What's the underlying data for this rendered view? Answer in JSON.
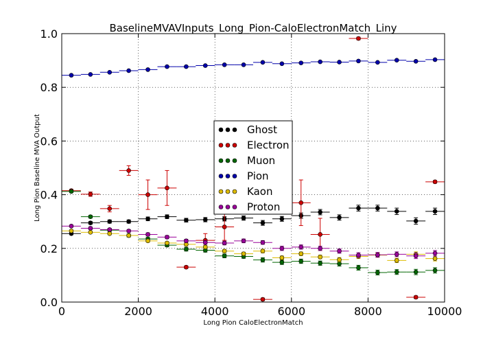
{
  "chart_data": {
    "type": "scatter",
    "title": "BaselineMVAVInputs_Long_Pion-CaloElectronMatch_Liny",
    "xlabel": "Long Pion CaloElectronMatch",
    "ylabel": "Long Pion Baseline MVA Output",
    "xlim": [
      0,
      10000
    ],
    "ylim": [
      0,
      1.0
    ],
    "xticks": [
      0,
      2000,
      4000,
      6000,
      8000,
      10000
    ],
    "xtick_labels": [
      "0",
      "2000",
      "4000",
      "6000",
      "8000",
      "10000"
    ],
    "yticks": [
      0.0,
      0.2,
      0.4,
      0.6,
      0.8,
      1.0
    ],
    "ytick_labels": [
      "0.0",
      "0.2",
      "0.4",
      "0.6",
      "0.8",
      "1.0"
    ],
    "grid": true,
    "legend_position": "center",
    "bin_width": 500,
    "x": [
      250,
      750,
      1250,
      1750,
      2250,
      2750,
      3250,
      3750,
      4250,
      4750,
      5250,
      5750,
      6250,
      6750,
      7250,
      7750,
      8250,
      8750,
      9250,
      9750
    ],
    "series": [
      {
        "name": "Ghost",
        "color": "#000000",
        "values": [
          0.255,
          0.295,
          0.3,
          0.3,
          0.31,
          0.318,
          0.305,
          0.307,
          0.31,
          0.313,
          0.295,
          0.31,
          0.322,
          0.335,
          0.315,
          0.35,
          0.35,
          0.338,
          0.302,
          0.338
        ],
        "errors": [
          0.004,
          0.005,
          0.006,
          0.006,
          0.007,
          0.007,
          0.007,
          0.008,
          0.008,
          0.008,
          0.009,
          0.009,
          0.01,
          0.01,
          0.01,
          0.011,
          0.011,
          0.012,
          0.012,
          0.012
        ]
      },
      {
        "name": "Electron",
        "color": "#cc0000",
        "values": [
          0.415,
          0.402,
          0.348,
          0.49,
          0.4,
          0.425,
          0.13,
          0.23,
          0.28,
          null,
          0.01,
          null,
          0.37,
          0.252,
          null,
          0.982,
          null,
          null,
          0.018,
          0.448
        ],
        "errors": [
          0.005,
          0.008,
          0.012,
          0.018,
          0.055,
          0.065,
          0.005,
          0.025,
          0.05,
          0,
          0.005,
          0,
          0.085,
          0.06,
          0,
          0.005,
          0,
          0,
          0.005,
          0.005
        ]
      },
      {
        "name": "Muon",
        "color": "#006600",
        "values": [
          0.412,
          0.318,
          0.268,
          0.248,
          0.235,
          0.212,
          0.197,
          0.193,
          0.172,
          0.17,
          0.157,
          0.148,
          0.152,
          0.145,
          0.143,
          0.128,
          0.11,
          0.112,
          0.112,
          0.118
        ],
        "errors": [
          0.004,
          0.005,
          0.005,
          0.006,
          0.006,
          0.006,
          0.007,
          0.007,
          0.007,
          0.007,
          0.008,
          0.008,
          0.008,
          0.008,
          0.009,
          0.009,
          0.009,
          0.009,
          0.01,
          0.01
        ]
      },
      {
        "name": "Pion",
        "color": "#0000aa",
        "values": [
          0.845,
          0.848,
          0.856,
          0.862,
          0.866,
          0.877,
          0.877,
          0.881,
          0.884,
          0.884,
          0.893,
          0.888,
          0.891,
          0.895,
          0.894,
          0.898,
          0.893,
          0.901,
          0.897,
          0.903
        ],
        "errors": [
          0.001,
          0.001,
          0.001,
          0.001,
          0.001,
          0.001,
          0.001,
          0.001,
          0.001,
          0.001,
          0.001,
          0.001,
          0.001,
          0.001,
          0.001,
          0.001,
          0.001,
          0.001,
          0.001,
          0.001
        ]
      },
      {
        "name": "Kaon",
        "color": "#ddbb00",
        "values": [
          0.265,
          0.26,
          0.255,
          0.248,
          0.228,
          0.22,
          0.215,
          0.205,
          0.19,
          0.18,
          0.19,
          0.165,
          0.18,
          0.168,
          0.158,
          0.17,
          0.175,
          0.155,
          0.178,
          0.162
        ],
        "errors": [
          0.003,
          0.004,
          0.004,
          0.005,
          0.005,
          0.005,
          0.006,
          0.006,
          0.006,
          0.006,
          0.007,
          0.007,
          0.007,
          0.007,
          0.008,
          0.008,
          0.008,
          0.008,
          0.009,
          0.009
        ]
      },
      {
        "name": "Proton",
        "color": "#990099",
        "values": [
          0.283,
          0.275,
          0.27,
          0.265,
          0.252,
          0.242,
          0.228,
          0.222,
          0.22,
          0.228,
          0.222,
          0.2,
          0.205,
          0.2,
          0.19,
          0.175,
          0.176,
          0.178,
          0.172,
          0.182
        ],
        "errors": [
          0.004,
          0.005,
          0.005,
          0.005,
          0.006,
          0.006,
          0.006,
          0.007,
          0.007,
          0.007,
          0.007,
          0.008,
          0.008,
          0.008,
          0.008,
          0.009,
          0.009,
          0.009,
          0.01,
          0.01
        ]
      }
    ]
  }
}
